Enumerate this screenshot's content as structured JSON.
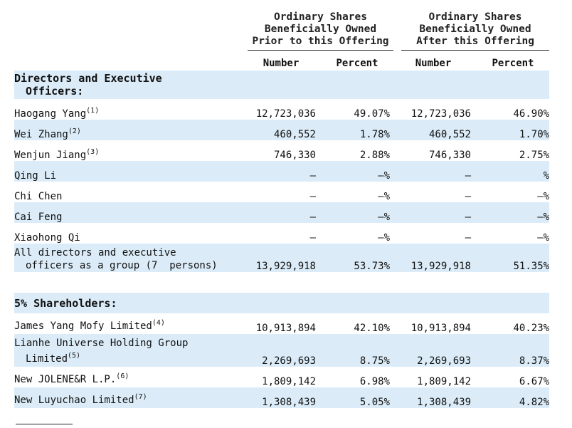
{
  "header": {
    "group_prior": [
      "Ordinary Shares",
      "Beneficially Owned",
      "Prior to this Offering"
    ],
    "group_after": [
      "Ordinary Shares",
      "Beneficially Owned",
      "After this Offering"
    ],
    "col_number": "Number",
    "col_percent": "Percent"
  },
  "sections": {
    "directors_line1": "Directors and Executive",
    "directors_line2": "Officers:",
    "shareholders": "5% Shareholders:"
  },
  "directors": [
    {
      "name": "Haogang Yang",
      "note": "(1)",
      "prior_number": "12,723,036",
      "prior_percent": "49.07%",
      "after_number": "12,723,036",
      "after_percent": "46.90%"
    },
    {
      "name": "Wei Zhang",
      "note": "(2)",
      "prior_number": "460,552",
      "prior_percent": "1.78%",
      "after_number": "460,552",
      "after_percent": "1.70%"
    },
    {
      "name": "Wenjun Jiang",
      "note": "(3)",
      "prior_number": "746,330",
      "prior_percent": "2.88%",
      "after_number": "746,330",
      "after_percent": "2.75%"
    },
    {
      "name": "Qing Li",
      "note": "",
      "prior_number": "—",
      "prior_percent": "—%",
      "after_number": "—",
      "after_percent": "%"
    },
    {
      "name": "Chi Chen",
      "note": "",
      "prior_number": "—",
      "prior_percent": "—%",
      "after_number": "—",
      "after_percent": "—%"
    },
    {
      "name": "Cai Feng",
      "note": "",
      "prior_number": "—",
      "prior_percent": "—%",
      "after_number": "—",
      "after_percent": "—%"
    },
    {
      "name": "Xiaohong Qi",
      "note": "",
      "prior_number": "—",
      "prior_percent": "—%",
      "after_number": "—",
      "after_percent": "—%"
    }
  ],
  "group_total": {
    "line1": "All directors and executive",
    "line2": "officers as a group (7  persons)",
    "prior_number": "13,929,918",
    "prior_percent": "53.73%",
    "after_number": "13,929,918",
    "after_percent": "51.35%"
  },
  "shareholders": [
    {
      "line1": "James Yang Mofy Limited",
      "note": "(4)",
      "line2": "",
      "prior_number": "10,913,894",
      "prior_percent": "42.10%",
      "after_number": "10,913,894",
      "after_percent": "40.23%"
    },
    {
      "line1": "Lianhe Universe Holding Group",
      "note": "(5)",
      "line2": "Limited",
      "prior_number": "2,269,693",
      "prior_percent": "8.75%",
      "after_number": "2,269,693",
      "after_percent": "8.37%"
    },
    {
      "line1": "New JOLENE&R L.P.",
      "note": "(6)",
      "line2": "",
      "prior_number": "1,809,142",
      "prior_percent": "6.98%",
      "after_number": "1,809,142",
      "after_percent": "6.67%"
    },
    {
      "line1": "New Luyuchao Limited",
      "note": "(7)",
      "line2": "",
      "prior_number": "1,308,439",
      "prior_percent": "5.05%",
      "after_number": "1,308,439",
      "after_percent": "4.82%"
    }
  ]
}
